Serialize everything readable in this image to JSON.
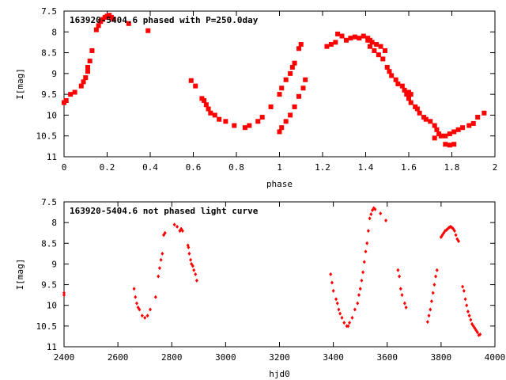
{
  "chart_data": [
    {
      "type": "scatter",
      "title": "163920-5404.6 phased with P=250.0day",
      "xlabel": "phase",
      "ylabel": "I[mag]",
      "xlim": [
        0,
        2
      ],
      "ylim": [
        7.5,
        11
      ],
      "y_inverted": true,
      "xticks": [
        "0",
        "0.2",
        "0.4",
        "0.6",
        "0.8",
        "1",
        "1.2",
        "1.4",
        "1.6",
        "1.8",
        "2"
      ],
      "yticks": [
        "7.5",
        "8",
        "8.5",
        "9",
        "9.5",
        "10",
        "10.5",
        "11"
      ],
      "marker": "filled-square",
      "color": "#ff0000",
      "points": [
        [
          0.0,
          9.7
        ],
        [
          0.01,
          9.65
        ],
        [
          0.03,
          9.5
        ],
        [
          0.05,
          9.45
        ],
        [
          0.08,
          9.3
        ],
        [
          0.09,
          9.2
        ],
        [
          0.1,
          9.1
        ],
        [
          0.11,
          8.95
        ],
        [
          0.11,
          8.85
        ],
        [
          0.12,
          8.7
        ],
        [
          0.13,
          8.45
        ],
        [
          0.15,
          7.95
        ],
        [
          0.16,
          7.85
        ],
        [
          0.17,
          7.75
        ],
        [
          0.18,
          7.7
        ],
        [
          0.19,
          7.65
        ],
        [
          0.2,
          7.62
        ],
        [
          0.21,
          7.6
        ],
        [
          0.22,
          7.65
        ],
        [
          0.23,
          7.7
        ],
        [
          0.3,
          7.8
        ],
        [
          0.39,
          7.97
        ],
        [
          0.59,
          9.17
        ],
        [
          0.61,
          9.3
        ],
        [
          0.64,
          9.6
        ],
        [
          0.65,
          9.65
        ],
        [
          0.66,
          9.75
        ],
        [
          0.67,
          9.85
        ],
        [
          0.68,
          9.95
        ],
        [
          0.7,
          10.0
        ],
        [
          0.72,
          10.1
        ],
        [
          0.75,
          10.15
        ],
        [
          0.79,
          10.25
        ],
        [
          0.84,
          10.3
        ],
        [
          0.86,
          10.25
        ],
        [
          0.9,
          10.15
        ],
        [
          0.92,
          10.05
        ],
        [
          0.96,
          9.8
        ],
        [
          1.0,
          10.4
        ],
        [
          1.01,
          10.3
        ],
        [
          1.03,
          10.15
        ],
        [
          1.05,
          10.0
        ],
        [
          1.07,
          9.8
        ],
        [
          1.09,
          9.55
        ],
        [
          1.11,
          9.35
        ],
        [
          1.12,
          9.15
        ],
        [
          1.0,
          9.5
        ],
        [
          1.01,
          9.35
        ],
        [
          1.03,
          9.15
        ],
        [
          1.05,
          9.0
        ],
        [
          1.06,
          8.85
        ],
        [
          1.07,
          8.75
        ],
        [
          1.09,
          8.4
        ],
        [
          1.1,
          8.3
        ],
        [
          1.22,
          8.35
        ],
        [
          1.24,
          8.3
        ],
        [
          1.26,
          8.25
        ],
        [
          1.27,
          8.05
        ],
        [
          1.29,
          8.1
        ],
        [
          1.31,
          8.2
        ],
        [
          1.33,
          8.15
        ],
        [
          1.35,
          8.12
        ],
        [
          1.37,
          8.15
        ],
        [
          1.39,
          8.1
        ],
        [
          1.41,
          8.15
        ],
        [
          1.42,
          8.2
        ],
        [
          1.43,
          8.25
        ],
        [
          1.45,
          8.3
        ],
        [
          1.47,
          8.35
        ],
        [
          1.49,
          8.45
        ],
        [
          1.41,
          8.2
        ],
        [
          1.42,
          8.35
        ],
        [
          1.44,
          8.45
        ],
        [
          1.46,
          8.55
        ],
        [
          1.48,
          8.65
        ],
        [
          1.5,
          8.85
        ],
        [
          1.51,
          8.95
        ],
        [
          1.52,
          9.05
        ],
        [
          1.54,
          9.15
        ],
        [
          1.55,
          9.25
        ],
        [
          1.57,
          9.3
        ],
        [
          1.58,
          9.4
        ],
        [
          1.6,
          9.45
        ],
        [
          1.61,
          9.5
        ],
        [
          1.59,
          9.5
        ],
        [
          1.6,
          9.6
        ],
        [
          1.61,
          9.7
        ],
        [
          1.63,
          9.8
        ],
        [
          1.64,
          9.85
        ],
        [
          1.65,
          9.95
        ],
        [
          1.67,
          10.05
        ],
        [
          1.68,
          10.1
        ],
        [
          1.7,
          10.15
        ],
        [
          1.72,
          10.25
        ],
        [
          1.73,
          10.35
        ],
        [
          1.74,
          10.45
        ],
        [
          1.75,
          10.5
        ],
        [
          1.77,
          10.5
        ],
        [
          1.79,
          10.45
        ],
        [
          1.81,
          10.4
        ],
        [
          1.83,
          10.35
        ],
        [
          1.85,
          10.3
        ],
        [
          1.88,
          10.25
        ],
        [
          1.9,
          10.2
        ],
        [
          1.92,
          10.05
        ],
        [
          1.95,
          9.95
        ],
        [
          1.77,
          10.7
        ],
        [
          1.79,
          10.72
        ],
        [
          1.81,
          10.7
        ],
        [
          1.72,
          10.55
        ]
      ]
    },
    {
      "type": "scatter",
      "title": "163920-5404.6 not phased light curve",
      "xlabel": "hjd0",
      "ylabel": "I[mag]",
      "xlim": [
        2400,
        4000
      ],
      "ylim": [
        7.5,
        11
      ],
      "y_inverted": true,
      "xticks": [
        "2400",
        "2600",
        "2800",
        "3000",
        "3200",
        "3400",
        "3600",
        "3800",
        "4000"
      ],
      "yticks": [
        "7.5",
        "8",
        "8.5",
        "9",
        "9.5",
        "10",
        "10.5",
        "11"
      ],
      "marker": "small-diamond",
      "color": "#ff0000",
      "points": [
        [
          2400,
          9.7
        ],
        [
          2400,
          9.75
        ],
        [
          2660,
          9.6
        ],
        [
          2665,
          9.8
        ],
        [
          2670,
          9.95
        ],
        [
          2675,
          10.05
        ],
        [
          2680,
          10.1
        ],
        [
          2690,
          10.25
        ],
        [
          2700,
          10.3
        ],
        [
          2710,
          10.25
        ],
        [
          2720,
          10.1
        ],
        [
          2740,
          9.8
        ],
        [
          2750,
          9.3
        ],
        [
          2755,
          9.1
        ],
        [
          2760,
          8.9
        ],
        [
          2765,
          8.75
        ],
        [
          2770,
          8.3
        ],
        [
          2775,
          8.25
        ],
        [
          2810,
          8.05
        ],
        [
          2820,
          8.1
        ],
        [
          2830,
          8.2
        ],
        [
          2835,
          8.15
        ],
        [
          2840,
          8.2
        ],
        [
          2860,
          8.55
        ],
        [
          2862,
          8.6
        ],
        [
          2865,
          8.75
        ],
        [
          2870,
          8.9
        ],
        [
          2873,
          9.0
        ],
        [
          2878,
          9.05
        ],
        [
          2882,
          9.15
        ],
        [
          2888,
          9.25
        ],
        [
          2893,
          9.4
        ],
        [
          3390,
          9.25
        ],
        [
          3395,
          9.45
        ],
        [
          3400,
          9.65
        ],
        [
          3410,
          9.85
        ],
        [
          3415,
          9.95
        ],
        [
          3420,
          10.1
        ],
        [
          3425,
          10.2
        ],
        [
          3432,
          10.3
        ],
        [
          3440,
          10.42
        ],
        [
          3450,
          10.5
        ],
        [
          3455,
          10.5
        ],
        [
          3460,
          10.42
        ],
        [
          3470,
          10.3
        ],
        [
          3480,
          10.1
        ],
        [
          3490,
          9.95
        ],
        [
          3495,
          9.75
        ],
        [
          3500,
          9.6
        ],
        [
          3505,
          9.4
        ],
        [
          3510,
          9.2
        ],
        [
          3515,
          8.95
        ],
        [
          3520,
          8.7
        ],
        [
          3525,
          8.5
        ],
        [
          3530,
          8.2
        ],
        [
          3535,
          7.9
        ],
        [
          3540,
          7.8
        ],
        [
          3545,
          7.7
        ],
        [
          3550,
          7.65
        ],
        [
          3555,
          7.68
        ],
        [
          3575,
          7.78
        ],
        [
          3595,
          7.95
        ],
        [
          3640,
          9.15
        ],
        [
          3645,
          9.3
        ],
        [
          3650,
          9.6
        ],
        [
          3655,
          9.75
        ],
        [
          3665,
          9.95
        ],
        [
          3670,
          10.05
        ],
        [
          3750,
          10.4
        ],
        [
          3755,
          10.25
        ],
        [
          3760,
          10.1
        ],
        [
          3765,
          9.9
        ],
        [
          3770,
          9.7
        ],
        [
          3775,
          9.5
        ],
        [
          3780,
          9.3
        ],
        [
          3785,
          9.15
        ],
        [
          3800,
          8.35
        ],
        [
          3805,
          8.3
        ],
        [
          3810,
          8.25
        ],
        [
          3815,
          8.2
        ],
        [
          3820,
          8.18
        ],
        [
          3825,
          8.15
        ],
        [
          3830,
          8.12
        ],
        [
          3835,
          8.1
        ],
        [
          3840,
          8.12
        ],
        [
          3845,
          8.15
        ],
        [
          3850,
          8.2
        ],
        [
          3855,
          8.3
        ],
        [
          3860,
          8.4
        ],
        [
          3865,
          8.45
        ],
        [
          3880,
          9.55
        ],
        [
          3885,
          9.65
        ],
        [
          3890,
          9.85
        ],
        [
          3895,
          10.0
        ],
        [
          3900,
          10.15
        ],
        [
          3905,
          10.25
        ],
        [
          3910,
          10.35
        ],
        [
          3915,
          10.45
        ],
        [
          3920,
          10.5
        ],
        [
          3925,
          10.55
        ],
        [
          3930,
          10.6
        ],
        [
          3935,
          10.65
        ],
        [
          3940,
          10.72
        ],
        [
          3945,
          10.7
        ]
      ]
    }
  ]
}
